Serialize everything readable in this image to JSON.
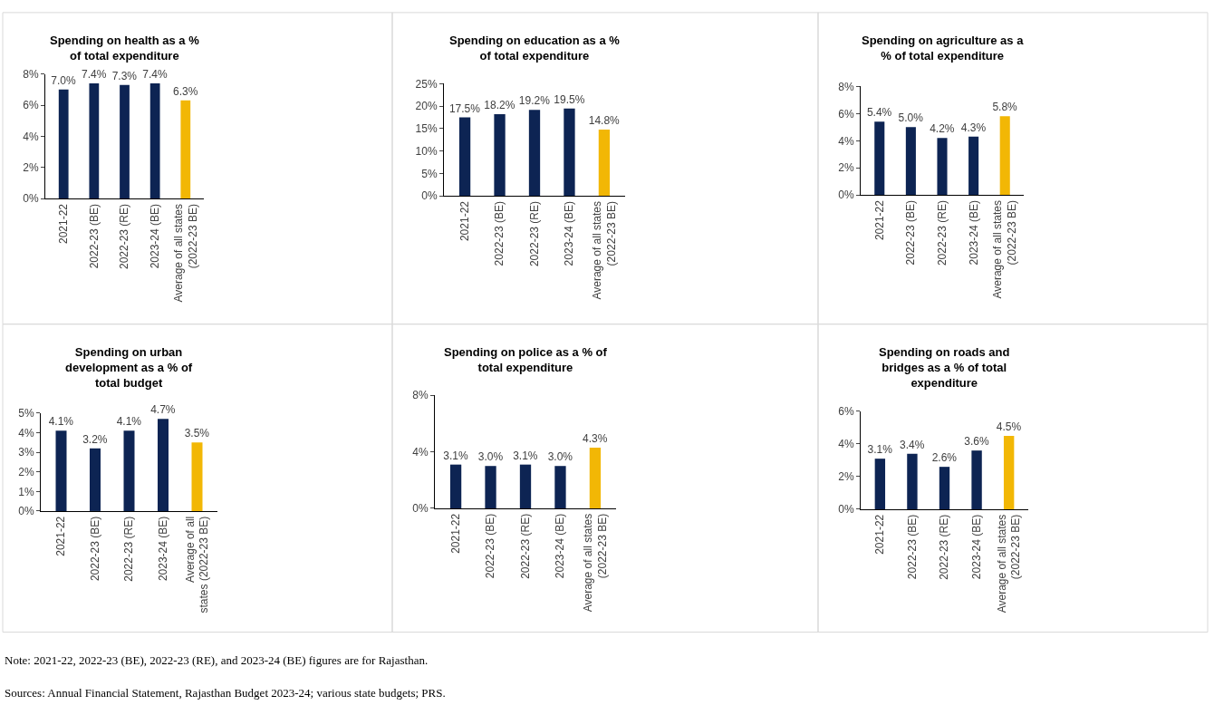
{
  "chart_data": [
    {
      "type": "bar",
      "title": "Spending on health as a %\nof total expenditure",
      "categories": [
        "2021-22",
        "2022-23 (BE)",
        "2022-23 (RE)",
        "2023-24 (BE)",
        "Average of all states\n(2022-23 BE)"
      ],
      "values": [
        7.0,
        7.4,
        7.3,
        7.4,
        6.3
      ],
      "colors": [
        "#0d2453",
        "#0d2453",
        "#0d2453",
        "#0d2453",
        "#f2b705"
      ],
      "value_labels": [
        "7.0%",
        "7.4%",
        "7.3%",
        "7.4%",
        "6.3%"
      ],
      "ylim": [
        0,
        8
      ],
      "yticks": [
        {
          "value": 0,
          "label": "0%"
        },
        {
          "value": 2,
          "label": "2%"
        },
        {
          "value": 4,
          "label": "4%"
        },
        {
          "value": 6,
          "label": "6%"
        },
        {
          "value": 8,
          "label": "8%"
        }
      ]
    },
    {
      "type": "bar",
      "title": "Spending on education as a %\nof total expenditure",
      "categories": [
        "2021-22",
        "2022-23 (BE)",
        "2022-23 (RE)",
        "2023-24 (BE)",
        "Average of all states\n(2022-23 BE)"
      ],
      "values": [
        17.5,
        18.2,
        19.2,
        19.5,
        14.8
      ],
      "colors": [
        "#0d2453",
        "#0d2453",
        "#0d2453",
        "#0d2453",
        "#f2b705"
      ],
      "value_labels": [
        "17.5%",
        "18.2%",
        "19.2%",
        "19.5%",
        "14.8%"
      ],
      "ylim": [
        0,
        25
      ],
      "yticks": [
        {
          "value": 0,
          "label": "0%"
        },
        {
          "value": 5,
          "label": "5%"
        },
        {
          "value": 10,
          "label": "10%"
        },
        {
          "value": 15,
          "label": "15%"
        },
        {
          "value": 20,
          "label": "20%"
        },
        {
          "value": 25,
          "label": "25%"
        }
      ]
    },
    {
      "type": "bar",
      "title": "Spending on agriculture as a\n% of total expenditure",
      "categories": [
        "2021-22",
        "2022-23 (BE)",
        "2022-23 (RE)",
        "2023-24 (BE)",
        "Average of all states\n(2022-23 BE)"
      ],
      "values": [
        5.4,
        5.0,
        4.2,
        4.3,
        5.8
      ],
      "colors": [
        "#0d2453",
        "#0d2453",
        "#0d2453",
        "#0d2453",
        "#f2b705"
      ],
      "value_labels": [
        "5.4%",
        "5.0%",
        "4.2%",
        "4.3%",
        "5.8%"
      ],
      "ylim": [
        0,
        8
      ],
      "yticks": [
        {
          "value": 0,
          "label": "0%"
        },
        {
          "value": 2,
          "label": "2%"
        },
        {
          "value": 4,
          "label": "4%"
        },
        {
          "value": 6,
          "label": "6%"
        },
        {
          "value": 8,
          "label": "8%"
        }
      ]
    },
    {
      "type": "bar",
      "title": "Spending on urban\ndevelopment as a % of\ntotal budget",
      "categories": [
        "2021-22",
        "2022-23 (BE)",
        "2022-23 (RE)",
        "2023-24 (BE)",
        "Average of all\nstates (2022-23 BE)"
      ],
      "values": [
        4.1,
        3.2,
        4.1,
        4.7,
        3.5
      ],
      "colors": [
        "#0d2453",
        "#0d2453",
        "#0d2453",
        "#0d2453",
        "#f2b705"
      ],
      "value_labels": [
        "4.1%",
        "3.2%",
        "4.1%",
        "4.7%",
        "3.5%"
      ],
      "ylim": [
        0,
        5
      ],
      "yticks": [
        {
          "value": 0,
          "label": "0%"
        },
        {
          "value": 1,
          "label": "1%"
        },
        {
          "value": 2,
          "label": "2%"
        },
        {
          "value": 3,
          "label": "3%"
        },
        {
          "value": 4,
          "label": "4%"
        },
        {
          "value": 5,
          "label": "5%"
        }
      ]
    },
    {
      "type": "bar",
      "title": "Spending on police as a % of\ntotal expenditure",
      "categories": [
        "2021-22",
        "2022-23 (BE)",
        "2022-23 (RE)",
        "2023-24 (BE)",
        "Average of all states\n(2022-23 BE)"
      ],
      "values": [
        3.1,
        3.0,
        3.1,
        3.0,
        4.3
      ],
      "colors": [
        "#0d2453",
        "#0d2453",
        "#0d2453",
        "#0d2453",
        "#f2b705"
      ],
      "value_labels": [
        "3.1%",
        "3.0%",
        "3.1%",
        "3.0%",
        "4.3%"
      ],
      "ylim": [
        0,
        8
      ],
      "yticks": [
        {
          "value": 0,
          "label": "0%"
        },
        {
          "value": 4,
          "label": "4%"
        },
        {
          "value": 8,
          "label": "8%"
        }
      ]
    },
    {
      "type": "bar",
      "title": "Spending on roads and\nbridges as a % of total\nexpenditure",
      "categories": [
        "2021-22",
        "2022-23 (BE)",
        "2022-23 (RE)",
        "2023-24 (BE)",
        "Average of all states\n(2022-23 BE)"
      ],
      "values": [
        3.1,
        3.4,
        2.6,
        3.6,
        4.5
      ],
      "colors": [
        "#0d2453",
        "#0d2453",
        "#0d2453",
        "#0d2453",
        "#f2b705"
      ],
      "value_labels": [
        "3.1%",
        "3.4%",
        "2.6%",
        "3.6%",
        "4.5%"
      ],
      "ylim": [
        0,
        6
      ],
      "yticks": [
        {
          "value": 0,
          "label": "0%"
        },
        {
          "value": 2,
          "label": "2%"
        },
        {
          "value": 4,
          "label": "4%"
        },
        {
          "value": 6,
          "label": "6%"
        }
      ],
      "annotations": [
        "Note: 2021-22, 2022-23 (BE), 2022-23 (RE), and 2023-24 (BE) figures are for Rajasthan.",
        "Sources: Annual Financial Statement, Rajasthan Budget 2023-24; various state budgets; PRS."
      ]
    }
  ]
}
